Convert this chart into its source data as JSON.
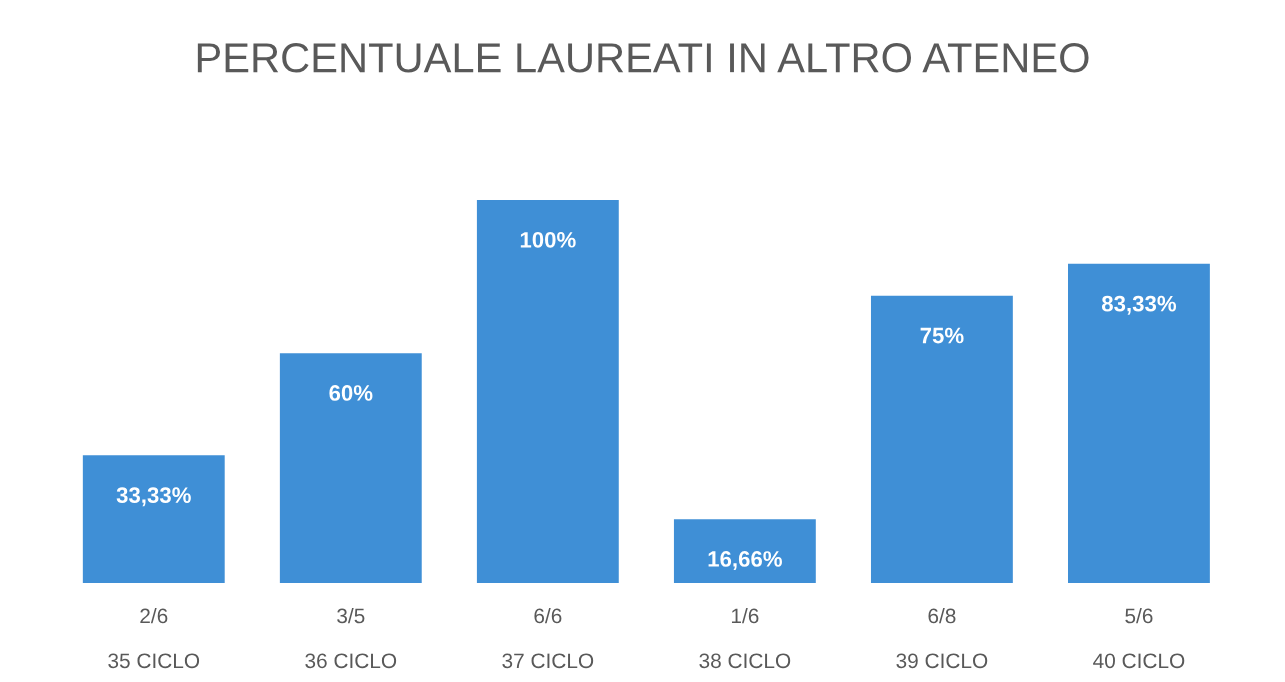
{
  "chart_data": {
    "type": "bar",
    "title": "PERCENTUALE LAUREATI IN ALTRO ATENEO",
    "categories": [
      "2/6\n\n35 CICLO",
      "3/5\n\n36 CICLO",
      "6/6\n\n37 CICLO",
      "1/6\n\n38 CICLO",
      "6/8\n\n39 CICLO",
      "5/6\n\n40 CICLO"
    ],
    "values": [
      33.33,
      60,
      100,
      16.66,
      75,
      83.33
    ],
    "value_labels": [
      "33,33%",
      "60%",
      "100%",
      "16,66%",
      "75%",
      "83,33%"
    ],
    "color": "#3f8fd6",
    "grid": false,
    "legend": false
  }
}
